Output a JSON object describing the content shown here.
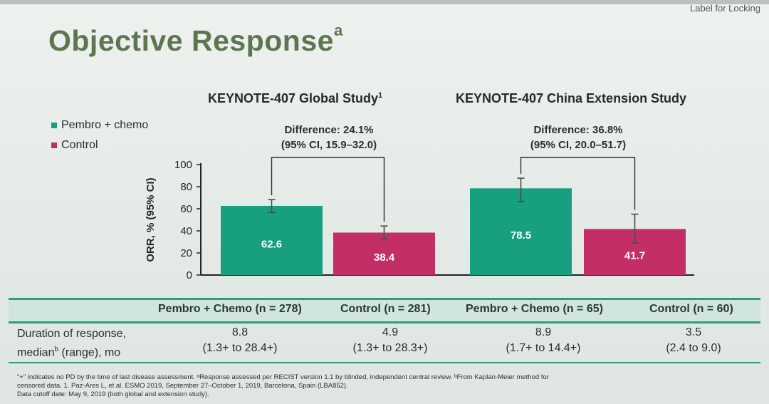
{
  "header": {
    "label": "Label for Locking",
    "title": "Objective Response",
    "title_sup": "a"
  },
  "legend": [
    {
      "label": "Pembro + chemo",
      "color": "#179f7f"
    },
    {
      "label": "Control",
      "color": "#c42e66"
    }
  ],
  "chart_data": {
    "type": "bar",
    "ylabel": "ORR, % (95% CI)",
    "ylim": [
      0,
      100
    ],
    "yticks": [
      0,
      20,
      40,
      60,
      80,
      100
    ],
    "groups": [
      {
        "title": "KEYNOTE-407 Global Study",
        "title_sup": "1",
        "difference_line1": "Difference: 24.1%",
        "difference_line2": "(95% CI, 15.9–32.0)",
        "bars": [
          {
            "series": "Pembro + chemo",
            "value": 62.6,
            "label": "62.6",
            "ci": [
              56.6,
              68.3
            ],
            "color": "#179f7f"
          },
          {
            "series": "Control",
            "value": 38.4,
            "label": "38.4",
            "ci": [
              32.7,
              44.4
            ],
            "color": "#c42e66"
          }
        ]
      },
      {
        "title": "KEYNOTE-407 China Extension Study",
        "title_sup": "",
        "difference_line1": "Difference: 36.8%",
        "difference_line2": "(95% CI, 20.0–51.7)",
        "bars": [
          {
            "series": "Pembro + chemo",
            "value": 78.5,
            "label": "78.5",
            "ci": [
              66.5,
              87.7
            ],
            "color": "#179f7f"
          },
          {
            "series": "Control",
            "value": 41.7,
            "label": "41.7",
            "ci": [
              29.1,
              55.1
            ],
            "color": "#c42e66"
          }
        ]
      }
    ]
  },
  "table": {
    "headers": [
      "Pembro + Chemo (n = 278)",
      "Control (n = 281)",
      "Pembro + Chemo (n = 65)",
      "Control (n = 60)"
    ],
    "row_label_line1": "Duration of response,",
    "row_label_line2": "median",
    "row_label_sup": "b",
    "row_label_line2_rest": " (range), mo",
    "cells": [
      {
        "median": "8.8",
        "range": "(1.3+ to 28.4+)"
      },
      {
        "median": "4.9",
        "range": "(1.3+ to 28.3+)"
      },
      {
        "median": "8.9",
        "range": "(1.7+ to 14.4+)"
      },
      {
        "median": "3.5",
        "range": "(2.4 to 9.0)"
      }
    ]
  },
  "footnotes": [
    "\"+\" indicates no PD by the time of last disease assessment. ᵃResponse assessed per RECIST version 1.1 by blinded, independent central review. ᵇFrom Kaplan-Meier method for",
    "censored data. 1. Paz-Ares L, et al. ESMO 2019, September 27–October 1, 2019, Barcelona, Spain (LBA852).",
    "Data cutoff date: May 9, 2019 (both global and extension study)."
  ]
}
